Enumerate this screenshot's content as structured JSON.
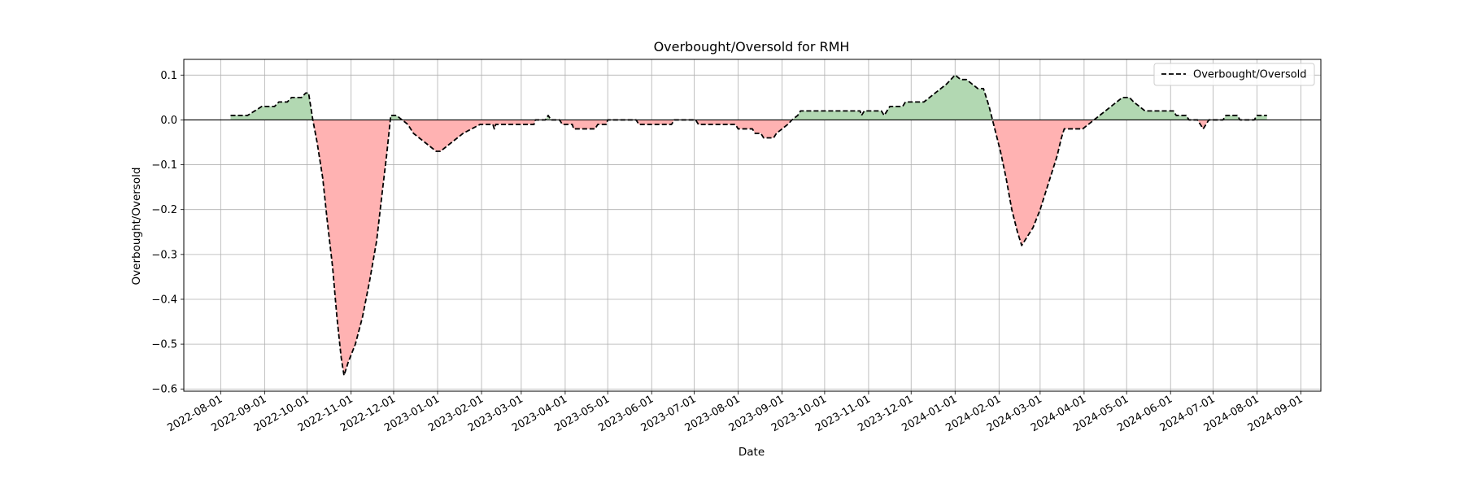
{
  "chart_data": {
    "type": "area",
    "title": "Overbought/Oversold for RMH",
    "xlabel": "Date",
    "ylabel": "Overbought/Oversold",
    "xlim": [
      "2022-07-06",
      "2024-09-15"
    ],
    "ylim": [
      -0.605,
      0.135
    ],
    "grid": true,
    "legend_position": "top-right",
    "yticks": [
      0.1,
      0.0,
      -0.1,
      -0.2,
      -0.3,
      -0.4,
      -0.5,
      -0.6
    ],
    "ytick_labels": [
      "0.1",
      "0.0",
      "−0.1",
      "−0.2",
      "−0.3",
      "−0.4",
      "−0.5",
      "−0.6"
    ],
    "xticks": [
      "2022-08-01",
      "2022-09-01",
      "2022-10-01",
      "2022-11-01",
      "2022-12-01",
      "2023-01-01",
      "2023-02-01",
      "2023-03-01",
      "2023-04-01",
      "2023-05-01",
      "2023-06-01",
      "2023-07-01",
      "2023-08-01",
      "2023-09-01",
      "2023-10-01",
      "2023-11-01",
      "2023-12-01",
      "2024-01-01",
      "2024-02-01",
      "2024-03-01",
      "2024-04-01",
      "2024-05-01",
      "2024-06-01",
      "2024-07-01",
      "2024-08-01",
      "2024-09-01"
    ],
    "reference_line": 0.0,
    "positive_fill_color": "#b2d8b2",
    "negative_fill_color": "#ffb2b2",
    "line_color": "#000000",
    "series": [
      {
        "name": "Overbought/Oversold",
        "style": "dashed",
        "points": [
          [
            "2022-08-08",
            0.01
          ],
          [
            "2022-08-20",
            0.01
          ],
          [
            "2022-08-25",
            0.02
          ],
          [
            "2022-08-30",
            0.03
          ],
          [
            "2022-09-08",
            0.03
          ],
          [
            "2022-09-11",
            0.04
          ],
          [
            "2022-09-17",
            0.04
          ],
          [
            "2022-09-20",
            0.05
          ],
          [
            "2022-09-27",
            0.05
          ],
          [
            "2022-09-30",
            0.06
          ],
          [
            "2022-10-02",
            0.06
          ],
          [
            "2022-10-05",
            0.0
          ],
          [
            "2022-10-08",
            -0.05
          ],
          [
            "2022-10-12",
            -0.13
          ],
          [
            "2022-10-15",
            -0.22
          ],
          [
            "2022-10-19",
            -0.33
          ],
          [
            "2022-10-22",
            -0.44
          ],
          [
            "2022-10-25",
            -0.53
          ],
          [
            "2022-10-27",
            -0.57
          ],
          [
            "2022-10-30",
            -0.54
          ],
          [
            "2022-11-04",
            -0.5
          ],
          [
            "2022-11-09",
            -0.44
          ],
          [
            "2022-11-14",
            -0.36
          ],
          [
            "2022-11-19",
            -0.27
          ],
          [
            "2022-11-23",
            -0.16
          ],
          [
            "2022-11-26",
            -0.08
          ],
          [
            "2022-11-28",
            -0.02
          ],
          [
            "2022-11-29",
            0.01
          ],
          [
            "2022-12-03",
            0.01
          ],
          [
            "2022-12-07",
            0.0
          ],
          [
            "2022-12-11",
            -0.01
          ],
          [
            "2022-12-15",
            -0.03
          ],
          [
            "2022-12-19",
            -0.04
          ],
          [
            "2022-12-23",
            -0.05
          ],
          [
            "2022-12-27",
            -0.06
          ],
          [
            "2022-12-31",
            -0.07
          ],
          [
            "2023-01-03",
            -0.07
          ],
          [
            "2023-01-07",
            -0.06
          ],
          [
            "2023-01-11",
            -0.05
          ],
          [
            "2023-01-15",
            -0.04
          ],
          [
            "2023-01-19",
            -0.03
          ],
          [
            "2023-01-25",
            -0.02
          ],
          [
            "2023-01-31",
            -0.01
          ],
          [
            "2023-02-09",
            -0.01
          ],
          [
            "2023-02-10",
            -0.02
          ],
          [
            "2023-02-11",
            -0.01
          ],
          [
            "2023-03-10",
            -0.01
          ],
          [
            "2023-03-11",
            0.0
          ],
          [
            "2023-03-18",
            0.0
          ],
          [
            "2023-03-20",
            0.01
          ],
          [
            "2023-03-22",
            0.0
          ],
          [
            "2023-03-28",
            0.0
          ],
          [
            "2023-03-30",
            -0.01
          ],
          [
            "2023-04-06",
            -0.01
          ],
          [
            "2023-04-07",
            -0.02
          ],
          [
            "2023-04-22",
            -0.02
          ],
          [
            "2023-04-24",
            -0.01
          ],
          [
            "2023-04-30",
            -0.01
          ],
          [
            "2023-05-01",
            0.0
          ],
          [
            "2023-05-21",
            0.0
          ],
          [
            "2023-05-23",
            -0.01
          ],
          [
            "2023-06-15",
            -0.01
          ],
          [
            "2023-06-17",
            0.0
          ],
          [
            "2023-07-02",
            0.0
          ],
          [
            "2023-07-04",
            -0.01
          ],
          [
            "2023-07-30",
            -0.01
          ],
          [
            "2023-08-01",
            -0.02
          ],
          [
            "2023-08-11",
            -0.02
          ],
          [
            "2023-08-13",
            -0.03
          ],
          [
            "2023-08-17",
            -0.03
          ],
          [
            "2023-08-19",
            -0.04
          ],
          [
            "2023-08-26",
            -0.04
          ],
          [
            "2023-08-28",
            -0.03
          ],
          [
            "2023-09-01",
            -0.02
          ],
          [
            "2023-09-05",
            -0.01
          ],
          [
            "2023-09-08",
            0.0
          ],
          [
            "2023-09-12",
            0.01
          ],
          [
            "2023-09-14",
            0.02
          ],
          [
            "2023-10-26",
            0.02
          ],
          [
            "2023-10-27",
            0.01
          ],
          [
            "2023-10-29",
            0.02
          ],
          [
            "2023-11-10",
            0.02
          ],
          [
            "2023-11-12",
            0.01
          ],
          [
            "2023-11-14",
            0.02
          ],
          [
            "2023-11-16",
            0.03
          ],
          [
            "2023-11-25",
            0.03
          ],
          [
            "2023-11-27",
            0.04
          ],
          [
            "2023-12-10",
            0.04
          ],
          [
            "2023-12-14",
            0.05
          ],
          [
            "2023-12-18",
            0.06
          ],
          [
            "2023-12-22",
            0.07
          ],
          [
            "2023-12-26",
            0.08
          ],
          [
            "2023-12-29",
            0.09
          ],
          [
            "2024-01-01",
            0.1
          ],
          [
            "2024-01-05",
            0.09
          ],
          [
            "2024-01-09",
            0.09
          ],
          [
            "2024-01-13",
            0.08
          ],
          [
            "2024-01-17",
            0.07
          ],
          [
            "2024-01-21",
            0.07
          ],
          [
            "2024-01-25",
            0.03
          ],
          [
            "2024-01-29",
            -0.02
          ],
          [
            "2024-02-02",
            -0.07
          ],
          [
            "2024-02-06",
            -0.13
          ],
          [
            "2024-02-10",
            -0.2
          ],
          [
            "2024-02-14",
            -0.25
          ],
          [
            "2024-02-17",
            -0.28
          ],
          [
            "2024-02-21",
            -0.26
          ],
          [
            "2024-02-25",
            -0.24
          ],
          [
            "2024-03-01",
            -0.2
          ],
          [
            "2024-03-05",
            -0.16
          ],
          [
            "2024-03-09",
            -0.12
          ],
          [
            "2024-03-13",
            -0.08
          ],
          [
            "2024-03-16",
            -0.04
          ],
          [
            "2024-03-18",
            -0.02
          ],
          [
            "2024-03-31",
            -0.02
          ],
          [
            "2024-04-04",
            -0.01
          ],
          [
            "2024-04-08",
            0.0
          ],
          [
            "2024-04-12",
            0.01
          ],
          [
            "2024-04-16",
            0.02
          ],
          [
            "2024-04-20",
            0.03
          ],
          [
            "2024-04-24",
            0.04
          ],
          [
            "2024-04-28",
            0.05
          ],
          [
            "2024-05-03",
            0.05
          ],
          [
            "2024-05-06",
            0.04
          ],
          [
            "2024-05-10",
            0.03
          ],
          [
            "2024-05-14",
            0.02
          ],
          [
            "2024-06-03",
            0.02
          ],
          [
            "2024-06-05",
            0.01
          ],
          [
            "2024-06-12",
            0.01
          ],
          [
            "2024-06-14",
            0.0
          ],
          [
            "2024-06-20",
            0.0
          ],
          [
            "2024-06-22",
            -0.01
          ],
          [
            "2024-06-24",
            -0.02
          ],
          [
            "2024-06-26",
            -0.01
          ],
          [
            "2024-06-28",
            0.0
          ],
          [
            "2024-07-08",
            0.0
          ],
          [
            "2024-07-10",
            0.01
          ],
          [
            "2024-07-18",
            0.01
          ],
          [
            "2024-07-20",
            0.0
          ],
          [
            "2024-07-30",
            0.0
          ],
          [
            "2024-08-01",
            0.01
          ],
          [
            "2024-08-08",
            0.01
          ]
        ]
      }
    ]
  }
}
